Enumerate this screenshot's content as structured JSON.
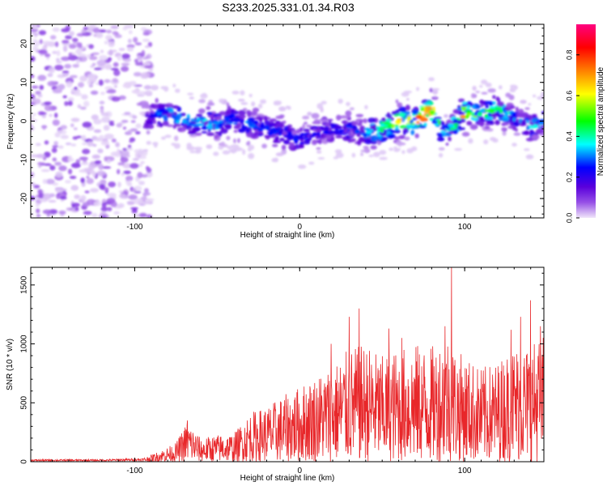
{
  "figure": {
    "title": "S233.2025.331.01.34.R03"
  },
  "chart_data": [
    {
      "type": "heatmap",
      "title": "S233.2025.331.01.34.R03",
      "xlabel": "Height of straight line (km)",
      "ylabel": "Frequency (Hz)",
      "xlim": [
        -163,
        148
      ],
      "ylim": [
        -25,
        25
      ],
      "xticks": [
        -100,
        0,
        100
      ],
      "xtick_labels": [
        "-100",
        "0",
        "100"
      ],
      "yticks": [
        -20,
        -10,
        0,
        10,
        20
      ],
      "ytick_labels": [
        "-20",
        "-10",
        "0",
        "10",
        "20"
      ],
      "colorbar": {
        "label": "Normalized spectral amplitude",
        "range": [
          0,
          0.95
        ],
        "ticks": [
          0.0,
          0.2,
          0.4,
          0.6,
          0.8
        ],
        "tick_labels": [
          "0.0",
          "0.2",
          "0.4",
          "0.6",
          "0.8"
        ],
        "colormap": [
          "#f0e6fa",
          "#9650e6",
          "#5a00dc",
          "#0000ff",
          "#00ffff",
          "#00ff00",
          "#ffff00",
          "#ff8000",
          "#ff0000",
          "#ff0080"
        ]
      },
      "noise_region_x": [
        -163,
        -90
      ],
      "ridge_center": [
        {
          "x": -92,
          "y": 1
        },
        {
          "x": -80,
          "y": 2
        },
        {
          "x": -70,
          "y": 0
        },
        {
          "x": -60,
          "y": 0
        },
        {
          "x": -50,
          "y": -1
        },
        {
          "x": -40,
          "y": 0
        },
        {
          "x": -30,
          "y": -1
        },
        {
          "x": -20,
          "y": -2
        },
        {
          "x": -10,
          "y": -3
        },
        {
          "x": 0,
          "y": -5
        },
        {
          "x": 10,
          "y": -3
        },
        {
          "x": 20,
          "y": -2
        },
        {
          "x": 30,
          "y": -2
        },
        {
          "x": 40,
          "y": -3
        },
        {
          "x": 50,
          "y": -2
        },
        {
          "x": 60,
          "y": 0
        },
        {
          "x": 70,
          "y": 0
        },
        {
          "x": 80,
          "y": 3
        },
        {
          "x": 88,
          "y": -4
        },
        {
          "x": 95,
          "y": 0
        },
        {
          "x": 100,
          "y": 2
        },
        {
          "x": 110,
          "y": 2
        },
        {
          "x": 120,
          "y": 3
        },
        {
          "x": 130,
          "y": 1
        },
        {
          "x": 140,
          "y": -2
        },
        {
          "x": 148,
          "y": 0
        }
      ],
      "ridge_peak_amplitude": [
        {
          "x": -92,
          "a": 0.3
        },
        {
          "x": -80,
          "a": 0.45
        },
        {
          "x": -60,
          "a": 0.45
        },
        {
          "x": -40,
          "a": 0.4
        },
        {
          "x": -20,
          "a": 0.35
        },
        {
          "x": 0,
          "a": 0.35
        },
        {
          "x": 20,
          "a": 0.3
        },
        {
          "x": 40,
          "a": 0.4
        },
        {
          "x": 50,
          "a": 0.55
        },
        {
          "x": 60,
          "a": 0.7
        },
        {
          "x": 70,
          "a": 0.75
        },
        {
          "x": 78,
          "a": 0.9
        },
        {
          "x": 88,
          "a": 0.4
        },
        {
          "x": 100,
          "a": 0.75
        },
        {
          "x": 110,
          "a": 0.5
        },
        {
          "x": 120,
          "a": 0.55
        },
        {
          "x": 130,
          "a": 0.4
        },
        {
          "x": 140,
          "a": 0.45
        },
        {
          "x": 148,
          "a": 0.4
        }
      ]
    },
    {
      "type": "line",
      "xlabel": "Height of straight line (km)",
      "ylabel": "SNR (10 * v/v)",
      "xlim": [
        -163,
        148
      ],
      "ylim": [
        0,
        1650
      ],
      "xticks": [
        -100,
        0,
        100
      ],
      "xtick_labels": [
        "-100",
        "0",
        "100"
      ],
      "yticks": [
        0,
        500,
        1000,
        1500
      ],
      "ytick_labels": [
        "0",
        "500",
        "1000",
        "1500"
      ],
      "series": [
        {
          "name": "SNR",
          "color": "#e8272a",
          "envelope": [
            {
              "x": -163,
              "y": 20
            },
            {
              "x": -120,
              "y": 20
            },
            {
              "x": -95,
              "y": 30
            },
            {
              "x": -85,
              "y": 90
            },
            {
              "x": -75,
              "y": 160
            },
            {
              "x": -68,
              "y": 350
            },
            {
              "x": -60,
              "y": 200
            },
            {
              "x": -50,
              "y": 230
            },
            {
              "x": -40,
              "y": 240
            },
            {
              "x": -30,
              "y": 420
            },
            {
              "x": -20,
              "y": 470
            },
            {
              "x": -10,
              "y": 560
            },
            {
              "x": 0,
              "y": 640
            },
            {
              "x": 10,
              "y": 740
            },
            {
              "x": 20,
              "y": 820
            },
            {
              "x": 30,
              "y": 960
            },
            {
              "x": 40,
              "y": 1000
            },
            {
              "x": 50,
              "y": 900
            },
            {
              "x": 60,
              "y": 960
            },
            {
              "x": 70,
              "y": 1000
            },
            {
              "x": 80,
              "y": 980
            },
            {
              "x": 90,
              "y": 1100
            },
            {
              "x": 95,
              "y": 950
            },
            {
              "x": 100,
              "y": 900
            },
            {
              "x": 110,
              "y": 800
            },
            {
              "x": 120,
              "y": 850
            },
            {
              "x": 130,
              "y": 1000
            },
            {
              "x": 140,
              "y": 1000
            },
            {
              "x": 148,
              "y": 1100
            }
          ],
          "peaks": [
            {
              "x": 92,
              "y": 1650
            },
            {
              "x": 140,
              "y": 1370
            },
            {
              "x": 36,
              "y": 1300
            },
            {
              "x": 30,
              "y": 1230
            },
            {
              "x": 146,
              "y": 1150
            },
            {
              "x": 88,
              "y": 1150
            },
            {
              "x": 54,
              "y": 1130
            },
            {
              "x": 128,
              "y": 1120
            },
            {
              "x": 134,
              "y": 1230
            },
            {
              "x": 19,
              "y": 1000
            },
            {
              "x": 62,
              "y": 1050
            },
            {
              "x": -68,
              "y": 350
            }
          ]
        }
      ]
    }
  ]
}
